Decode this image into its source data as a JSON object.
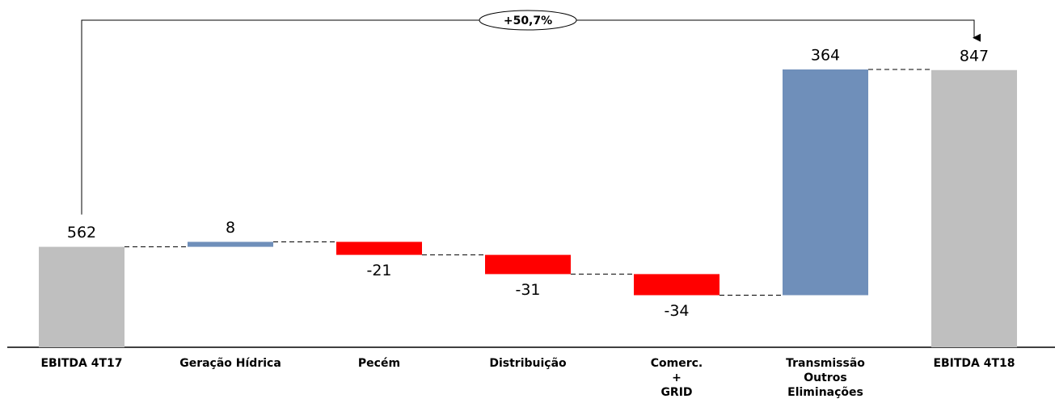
{
  "chart_data": {
    "type": "waterfall",
    "categories": [
      "EBITDA  4T17",
      "Geração Hídrica",
      "Pecém",
      "Distribuição",
      "Comerc. + GRID",
      "Transmissão Outros Eliminações",
      "EBITDA  4T18"
    ],
    "values": [
      562,
      8,
      -21,
      -31,
      -34,
      364,
      847
    ],
    "measure": [
      "total",
      "relative",
      "relative",
      "relative",
      "relative",
      "relative",
      "total"
    ],
    "colors": {
      "total": "#bfbfbf",
      "increase": "#6f8fba",
      "decrease": "#ff0000"
    },
    "ylim": [
      400,
      960
    ],
    "annotation": "+50,7%"
  }
}
